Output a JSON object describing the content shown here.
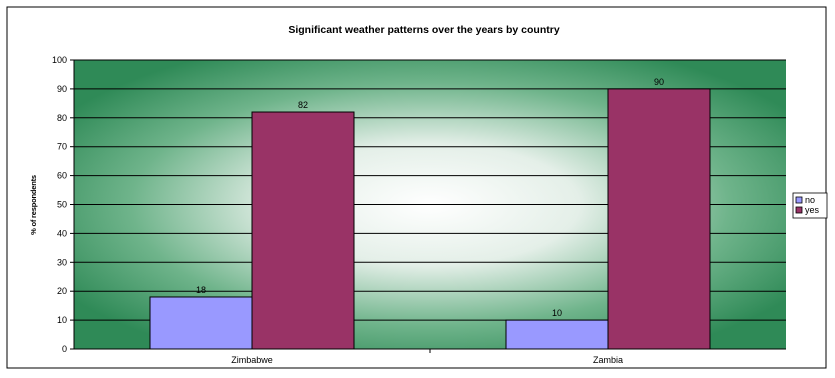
{
  "chart_data": {
    "type": "bar",
    "title": "Significant weather patterns over the years by country",
    "xlabel": "",
    "ylabel": "% of respondents",
    "categories": [
      "Zimbabwe",
      "Zambia"
    ],
    "series": [
      {
        "name": "no",
        "values": [
          18,
          10
        ],
        "color": "#9999ff"
      },
      {
        "name": "yes",
        "values": [
          82,
          90
        ],
        "color": "#993366"
      }
    ],
    "ylim": [
      0,
      100
    ],
    "yticks": [
      "0",
      "10",
      "20",
      "30",
      "40",
      "50",
      "60",
      "70",
      "80",
      "90",
      "100"
    ],
    "grid": true,
    "legend": "right",
    "plot_background": "green radial gradient"
  }
}
